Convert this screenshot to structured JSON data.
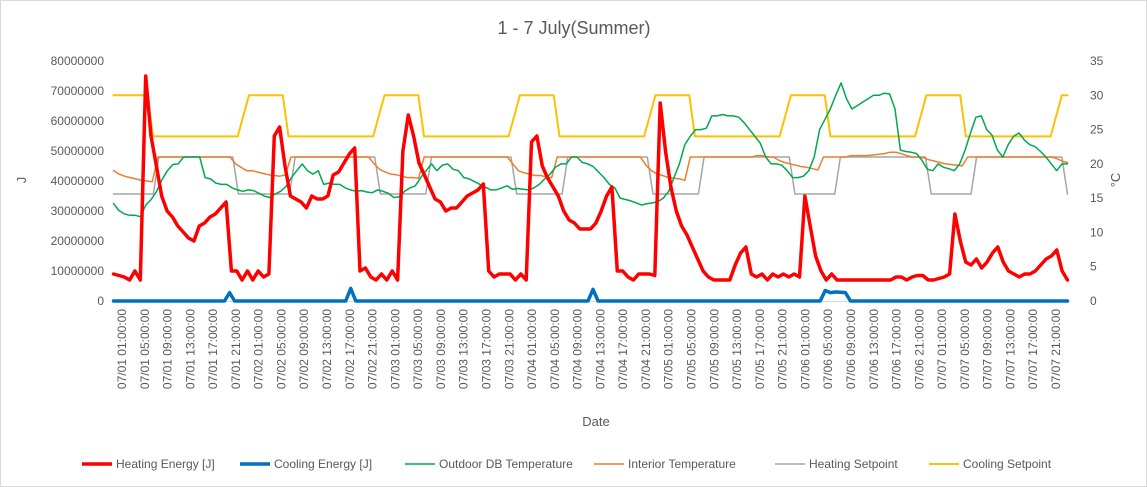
{
  "chart_data": {
    "type": "line",
    "title": "1 - 7 July(Summer)",
    "xlabel": "Date",
    "ylabel_left": "J",
    "ylabel_right": "°C",
    "y_left_lim": [
      0,
      80000000
    ],
    "y_left_ticks": [
      "0",
      "10000000",
      "20000000",
      "30000000",
      "40000000",
      "50000000",
      "60000000",
      "70000000",
      "80000000"
    ],
    "y_right_lim": [
      0,
      35
    ],
    "y_right_ticks": [
      "0",
      "5",
      "10",
      "15",
      "20",
      "25",
      "30",
      "35"
    ],
    "grid": false,
    "legend_position": "bottom",
    "x_tick_labels": [
      "07/01 01:00:00",
      "07/01 05:00:00",
      "07/01 09:00:00",
      "07/01 13:00:00",
      "07/01 17:00:00",
      "07/01 21:00:00",
      "07/02 01:00:00",
      "07/02 05:00:00",
      "07/02 09:00:00",
      "07/02 13:00:00",
      "07/02 17:00:00",
      "07/02 21:00:00",
      "07/03 01:00:00",
      "07/03 05:00:00",
      "07/03 09:00:00",
      "07/03 13:00:00",
      "07/03 17:00:00",
      "07/03 21:00:00",
      "07/04 01:00:00",
      "07/04 05:00:00",
      "07/04 09:00:00",
      "07/04 13:00:00",
      "07/04 17:00:00",
      "07/04 21:00:00",
      "07/05 01:00:00",
      "07/05 05:00:00",
      "07/05 09:00:00",
      "07/05 13:00:00",
      "07/05 17:00:00",
      "07/05 21:00:00",
      "07/06 01:00:00",
      "07/06 05:00:00",
      "07/06 09:00:00",
      "07/06 13:00:00",
      "07/06 17:00:00",
      "07/06 21:00:00",
      "07/07 01:00:00",
      "07/07 05:00:00",
      "07/07 09:00:00",
      "07/07 13:00:00",
      "07/07 17:00:00",
      "07/07 21:00:00"
    ],
    "series": [
      {
        "name": "Heating Energy [J]",
        "axis": "left",
        "color": "#FF0000",
        "width": 3.5,
        "values": [
          9000000,
          8500000,
          8000000,
          7000000,
          10000000,
          7000000,
          75000000,
          55000000,
          45000000,
          35000000,
          30000000,
          28000000,
          25000000,
          23000000,
          21000000,
          20000000,
          25000000,
          26000000,
          28000000,
          29000000,
          31000000,
          33000000,
          10000000,
          10000000,
          7000000,
          10000000,
          7000000,
          10000000,
          8000000,
          9000000,
          55000000,
          58000000,
          45000000,
          35000000,
          34000000,
          33000000,
          31000000,
          35000000,
          34000000,
          34000000,
          35000000,
          42000000,
          43000000,
          46000000,
          49000000,
          51000000,
          10000000,
          11000000,
          8000000,
          7000000,
          9000000,
          7000000,
          10000000,
          7000000,
          50000000,
          62000000,
          55000000,
          46000000,
          42000000,
          38000000,
          34000000,
          33000000,
          30000000,
          31000000,
          31000000,
          33000000,
          35000000,
          36000000,
          37000000,
          39000000,
          10000000,
          8000000,
          9000000,
          9000000,
          9000000,
          7000000,
          9000000,
          7000000,
          53000000,
          55000000,
          45000000,
          41000000,
          38000000,
          35000000,
          30000000,
          27000000,
          26000000,
          24000000,
          24000000,
          24000000,
          26000000,
          30000000,
          35000000,
          38000000,
          10000000,
          10000000,
          8000000,
          7000000,
          9000000,
          9000000,
          9000000,
          8500000,
          66000000,
          50000000,
          38000000,
          30000000,
          25000000,
          22000000,
          18000000,
          14000000,
          10000000,
          8000000,
          7000000,
          7000000,
          7000000,
          7000000,
          12000000,
          16000000,
          18000000,
          9000000,
          8000000,
          9000000,
          7000000,
          9000000,
          8000000,
          9000000,
          8000000,
          9000000,
          8000000,
          35000000,
          25000000,
          15000000,
          10000000,
          7000000,
          9000000,
          7000000,
          7000000,
          7000000,
          7000000,
          7000000,
          7000000,
          7000000,
          7000000,
          7000000,
          7000000,
          7000000,
          8000000,
          8000000,
          7000000,
          8000000,
          8500000,
          8500000,
          7000000,
          7000000,
          7500000,
          8000000,
          9000000,
          29000000,
          20000000,
          13000000,
          12000000,
          14000000,
          11000000,
          13000000,
          16000000,
          18000000,
          13000000,
          10000000,
          9000000,
          8000000,
          9000000,
          9000000,
          10000000,
          12000000,
          14000000,
          15000000,
          17000000,
          10000000,
          7000000
        ]
      },
      {
        "name": "Cooling Energy [J]",
        "axis": "left",
        "color": "#0070C0",
        "width": 3.5,
        "values": [
          0,
          0,
          0,
          0,
          0,
          0,
          0,
          0,
          0,
          0,
          0,
          0,
          0,
          0,
          0,
          0,
          0,
          0,
          0,
          0,
          0,
          0,
          0,
          2800000,
          0,
          0,
          0,
          0,
          0,
          0,
          0,
          0,
          0,
          0,
          0,
          0,
          0,
          0,
          0,
          0,
          0,
          0,
          0,
          0,
          0,
          0,
          0,
          4200000,
          0,
          0,
          0,
          0,
          0,
          0,
          0,
          0,
          0,
          0,
          0,
          0,
          0,
          0,
          0,
          0,
          0,
          0,
          0,
          0,
          0,
          0,
          0,
          0,
          0,
          0,
          0,
          0,
          0,
          0,
          0,
          0,
          0,
          0,
          0,
          0,
          0,
          0,
          0,
          0,
          0,
          0,
          0,
          0,
          0,
          0,
          0,
          3900000,
          0,
          0,
          0,
          0,
          0,
          0,
          0,
          0,
          0,
          0,
          0,
          0,
          0,
          0,
          0,
          0,
          0,
          0,
          0,
          0,
          0,
          0,
          0,
          0,
          0,
          0,
          0,
          0,
          0,
          0,
          0,
          0,
          0,
          0,
          0,
          0,
          0,
          0,
          0,
          0,
          0,
          0,
          0,
          0,
          0,
          3500000,
          2800000,
          3000000,
          2900000,
          2800000,
          0,
          0,
          0,
          0,
          0,
          0,
          0,
          0,
          0,
          0,
          0,
          0,
          0,
          0,
          0,
          0,
          0,
          0,
          0,
          0,
          0,
          0,
          0,
          0,
          0,
          0,
          0,
          0,
          0,
          0,
          0,
          0,
          0,
          0,
          0,
          0,
          0,
          0,
          0,
          0,
          0,
          0,
          0,
          0
        ]
      },
      {
        "name": "Outdoor DB Temperature",
        "axis": "right",
        "color": "#00A84F",
        "width": 1.5,
        "values": [
          14.2,
          13.2,
          12.7,
          12.5,
          12.5,
          12.3,
          14,
          14.8,
          16,
          17.7,
          19,
          19.9,
          20,
          21,
          21,
          21,
          21,
          18,
          17.8,
          17.2,
          17,
          17,
          16.5,
          16.2,
          16,
          16.2,
          16.1,
          15.7,
          15.3,
          15.1,
          15.6,
          16,
          16.7,
          18,
          19,
          20,
          19,
          18.5,
          19,
          17,
          17.2,
          17,
          17,
          16.5,
          16.2,
          16,
          16.1,
          15.9,
          15.8,
          16.2,
          16,
          15.7,
          15.1,
          15.2,
          16,
          16.5,
          16.8,
          18,
          19,
          20,
          19,
          19.8,
          20,
          19.2,
          19,
          18,
          17.8,
          17.4,
          17,
          16.6,
          16.2,
          16.2,
          16.5,
          16.8,
          16.3,
          16.4,
          16.3,
          16.2,
          16.5,
          17,
          17.8,
          18.5,
          19.5,
          20,
          20,
          21,
          21,
          20.2,
          20,
          19.6,
          18.8,
          18,
          17,
          16.5,
          15,
          14.8,
          14.6,
          14.3,
          14,
          14.2,
          14.3,
          14.5,
          15,
          16,
          18,
          20,
          22.8,
          24,
          25,
          25,
          25.2,
          27,
          27,
          27.2,
          27,
          27,
          26.8,
          26,
          25,
          24,
          23,
          21,
          20,
          20,
          19.8,
          19,
          18,
          18,
          18.2,
          19,
          21,
          25,
          26.5,
          28,
          30,
          31.8,
          29.5,
          28,
          28.5,
          29,
          29.5,
          30,
          30,
          30.3,
          30.2,
          28,
          22,
          21.8,
          21.7,
          21.5,
          20.5,
          19.2,
          19,
          20,
          19.5,
          19.3,
          19,
          20,
          22,
          24.5,
          26.8,
          27,
          25,
          24.2,
          22,
          21,
          22.8,
          24,
          24.5,
          23.5,
          22.8,
          22.5,
          21.8,
          21,
          20,
          19,
          20,
          20
        ]
      },
      {
        "name": "Interior Temperature",
        "axis": "right",
        "color": "#ED7D31",
        "width": 1.5,
        "values": [
          19,
          18.5,
          18.2,
          18,
          17.8,
          17.6,
          17.5,
          17.4,
          21,
          21,
          21,
          21,
          21,
          21,
          21,
          21,
          21,
          21,
          21,
          21,
          21,
          21,
          20,
          19.5,
          19,
          19,
          18.8,
          18.6,
          18.4,
          18.3,
          18.2,
          18.4,
          21,
          21,
          21,
          21,
          21,
          21,
          21,
          21,
          21,
          21,
          21,
          21,
          21,
          21,
          21,
          20,
          19.2,
          18.8,
          18.5,
          18.4,
          18.2,
          18,
          18,
          17.9,
          21,
          21,
          21,
          21,
          21,
          21,
          21,
          21,
          21,
          21,
          21,
          21,
          21,
          21,
          21,
          21,
          20,
          19,
          18.7,
          18.5,
          18.3,
          18.3,
          18.1,
          18,
          21,
          21,
          21,
          21,
          21,
          21,
          21,
          21,
          21,
          21,
          21,
          21,
          21,
          21,
          21,
          21,
          19.8,
          19,
          18.5,
          18.3,
          18,
          17.9,
          17.8,
          17.6,
          21,
          21,
          21,
          21,
          21,
          21,
          21,
          21,
          21,
          21,
          21,
          21,
          21.2,
          21.2,
          21,
          21,
          20.5,
          20.2,
          20,
          19.8,
          19.6,
          19.5,
          19.3,
          19.1,
          21,
          21,
          21,
          21,
          21,
          21.2,
          21.2,
          21.2,
          21.2,
          21.3,
          21.4,
          21.5,
          21.7,
          21.7,
          21.5,
          21.2,
          21,
          21,
          20.9,
          20.6,
          20.4,
          20.2,
          20,
          19.9,
          19.8,
          19.7,
          21,
          21,
          21,
          21,
          21,
          21,
          21,
          21,
          21,
          21,
          21,
          21,
          21,
          21,
          21,
          21,
          20.8,
          20.4,
          20.2
        ]
      },
      {
        "name": "Heating Setpoint",
        "axis": "right",
        "color": "#A5A5A5",
        "width": 1.5,
        "values": [
          15.6,
          15.6,
          15.6,
          15.6,
          15.6,
          15.6,
          15.6,
          15.6,
          21,
          21,
          21,
          21,
          21,
          21,
          21,
          21,
          21,
          21,
          21,
          21,
          21,
          21,
          15.6,
          15.6,
          15.6,
          15.6,
          15.6,
          15.6,
          15.6,
          15.6,
          15.6,
          15.6,
          21,
          21,
          21,
          21,
          21,
          21,
          21,
          21,
          21,
          21,
          21,
          21,
          21,
          21,
          21,
          15.6,
          15.6,
          15.6,
          15.6,
          15.6,
          15.6,
          15.6,
          15.6,
          15.6,
          21,
          21,
          21,
          21,
          21,
          21,
          21,
          21,
          21,
          21,
          21,
          21,
          21,
          21,
          21,
          15.6,
          15.6,
          15.6,
          15.6,
          15.6,
          15.6,
          15.6,
          15.6,
          15.6,
          21,
          21,
          21,
          21,
          21,
          21,
          21,
          21,
          21,
          21,
          21,
          21,
          21,
          21,
          21,
          15.6,
          15.6,
          15.6,
          15.6,
          15.6,
          15.6,
          15.6,
          15.6,
          15.6,
          21,
          21,
          21,
          21,
          21,
          21,
          21,
          21,
          21,
          21,
          21,
          21,
          21,
          21,
          21,
          21,
          15.6,
          15.6,
          15.6,
          15.6,
          15.6,
          15.6,
          15.6,
          15.6,
          21,
          21,
          21,
          21,
          21,
          21,
          21,
          21,
          21,
          21,
          21,
          21,
          21,
          21,
          21,
          21,
          15.6,
          15.6,
          15.6,
          15.6,
          15.6,
          15.6,
          15.6,
          15.6,
          21,
          21,
          21,
          21,
          21,
          21,
          21,
          21,
          21,
          21,
          21,
          21,
          21,
          21,
          21,
          21,
          15.6
        ]
      },
      {
        "name": "Cooling Setpoint",
        "axis": "right",
        "color": "#FFC000",
        "width": 2,
        "values": [
          30,
          30,
          30,
          30,
          30,
          30,
          30,
          24,
          24,
          24,
          24,
          24,
          24,
          24,
          24,
          24,
          24,
          24,
          24,
          24,
          24,
          24,
          24,
          27,
          30,
          30,
          30,
          30,
          30,
          30,
          30,
          24,
          24,
          24,
          24,
          24,
          24,
          24,
          24,
          24,
          24,
          24,
          24,
          24,
          24,
          24,
          24,
          27,
          30,
          30,
          30,
          30,
          30,
          30,
          30,
          24,
          24,
          24,
          24,
          24,
          24,
          24,
          24,
          24,
          24,
          24,
          24,
          24,
          24,
          24,
          24,
          27,
          30,
          30,
          30,
          30,
          30,
          30,
          30,
          24,
          24,
          24,
          24,
          24,
          24,
          24,
          24,
          24,
          24,
          24,
          24,
          24,
          24,
          24,
          24,
          27,
          30,
          30,
          30,
          30,
          30,
          30,
          30,
          24,
          24,
          24,
          24,
          24,
          24,
          24,
          24,
          24,
          24,
          24,
          24,
          24,
          24,
          24,
          24,
          27,
          30,
          30,
          30,
          30,
          30,
          30,
          30,
          24,
          24,
          24,
          24,
          24,
          24,
          24,
          24,
          24,
          24,
          24,
          24,
          24,
          24,
          24,
          24,
          27,
          30,
          30,
          30,
          30,
          30,
          30,
          30,
          24,
          24,
          24,
          24,
          24,
          24,
          24,
          24,
          24,
          24,
          24,
          24,
          24,
          24,
          24,
          24,
          27,
          30,
          30
        ]
      }
    ]
  }
}
